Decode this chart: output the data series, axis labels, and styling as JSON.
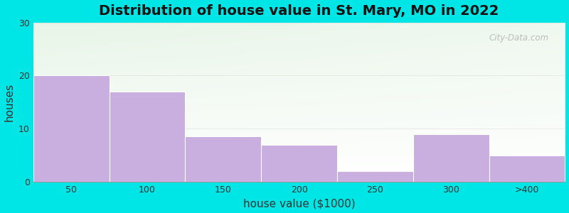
{
  "title": "Distribution of house value in St. Mary, MO in 2022",
  "xlabel": "house value ($1000)",
  "ylabel": "houses",
  "categories": [
    "50",
    "100",
    "150",
    "200",
    "250",
    "300",
    ">400"
  ],
  "values": [
    20,
    17,
    8.5,
    7,
    2,
    9,
    5
  ],
  "bar_color": "#c9aee0",
  "bar_edgecolor": "#ffffff",
  "ylim": [
    0,
    30
  ],
  "yticks": [
    0,
    10,
    20,
    30
  ],
  "background_outer": "#00e5e5",
  "title_fontsize": 14,
  "axis_label_fontsize": 11,
  "tick_fontsize": 9,
  "watermark": "City-Data.com"
}
